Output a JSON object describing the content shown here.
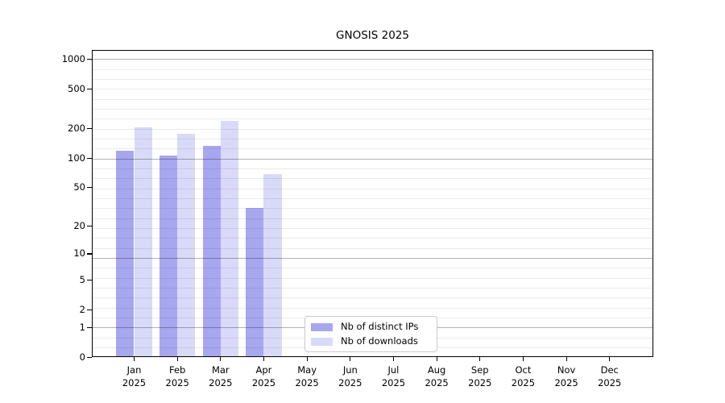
{
  "title": "GNOSIS 2025",
  "legend": {
    "items": [
      {
        "label": "Nb of distinct IPs",
        "color": "#a7a7f0"
      },
      {
        "label": "Nb of downloads",
        "color": "#d9d9f8"
      }
    ]
  },
  "chart_data": {
    "type": "bar",
    "title": "GNOSIS 2025",
    "categories": [
      "Jan",
      "Feb",
      "Mar",
      "Apr",
      "May",
      "Jun",
      "Jul",
      "Aug",
      "Sep",
      "Oct",
      "Nov",
      "Dec"
    ],
    "category_year": "2025",
    "series": [
      {
        "name": "Nb of distinct IPs",
        "color": "#a7a7f0",
        "values": [
          119,
          107,
          132,
          31,
          0,
          0,
          0,
          0,
          0,
          0,
          0,
          0
        ]
      },
      {
        "name": "Nb of downloads",
        "color": "#d9d9f8",
        "values": [
          203,
          176,
          240,
          69,
          0,
          0,
          0,
          0,
          0,
          0,
          0,
          0
        ]
      }
    ],
    "yticks": [
      0,
      1,
      2,
      5,
      10,
      20,
      50,
      100,
      200,
      500,
      1000
    ],
    "ylim": [
      0,
      1258
    ],
    "yscale": "log10(value+1)",
    "grid": true,
    "legend_position": "lower-center"
  }
}
